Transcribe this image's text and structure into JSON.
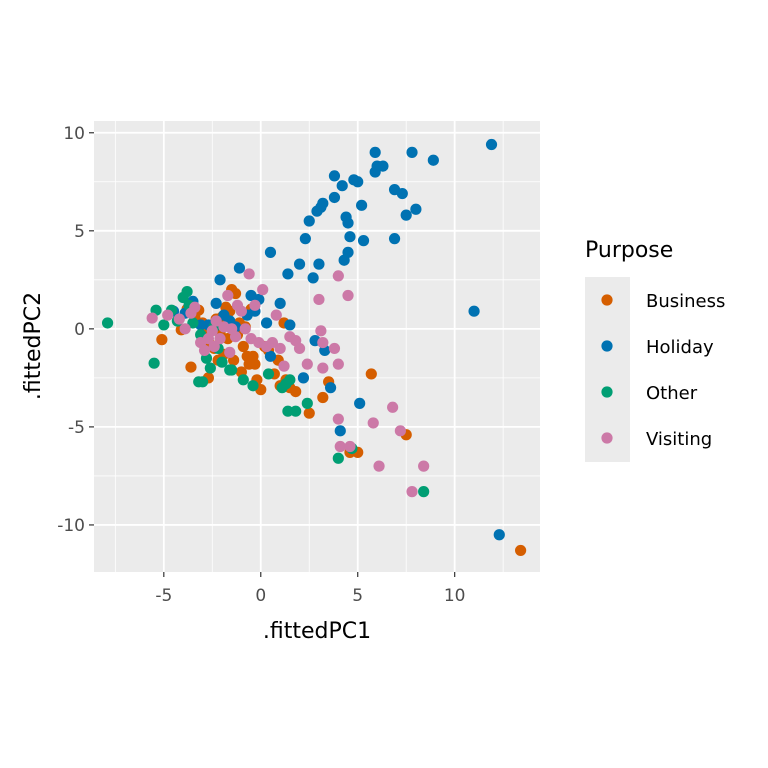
{
  "chart_data": {
    "type": "scatter",
    "title": "",
    "xlabel": ".fittedPC1",
    "ylabel": ".fittedPC2",
    "xlim": [
      -8.6,
      14.4
    ],
    "ylim": [
      -12.4,
      10.6
    ],
    "x_ticks": [
      -5,
      0,
      5,
      10
    ],
    "y_ticks": [
      -10,
      -5,
      0,
      5,
      10
    ],
    "x_tick_labels": [
      "-5",
      "0",
      "5",
      "10"
    ],
    "y_tick_labels": [
      "-10",
      "-5",
      "0",
      "5",
      "10"
    ],
    "grid": true,
    "legend": {
      "title": "Purpose",
      "position": "right"
    },
    "series": [
      {
        "name": "Business",
        "color": "#D55E00",
        "points": [
          [
            -5.1,
            -0.55
          ],
          [
            -4.1,
            -0.05
          ],
          [
            -3.8,
            1.0
          ],
          [
            -3.6,
            -1.95
          ],
          [
            -3.4,
            0.6
          ],
          [
            -3.2,
            0.95
          ],
          [
            -3.0,
            0.3
          ],
          [
            -2.8,
            -0.2
          ],
          [
            -2.6,
            -0.8
          ],
          [
            -2.5,
            0.2
          ],
          [
            -2.4,
            -1.0
          ],
          [
            -2.3,
            0.5
          ],
          [
            -2.2,
            -1.6
          ],
          [
            -2.1,
            -0.2
          ],
          [
            -2.0,
            0.6
          ],
          [
            -1.9,
            -1.3
          ],
          [
            -1.8,
            1.1
          ],
          [
            -1.7,
            -0.5
          ],
          [
            -1.6,
            0.9
          ],
          [
            -1.5,
            2.0
          ],
          [
            -1.4,
            -1.6
          ],
          [
            -1.3,
            1.8
          ],
          [
            -1.2,
            -0.3
          ],
          [
            -1.1,
            0.3
          ],
          [
            -1.0,
            -2.2
          ],
          [
            -0.9,
            -0.9
          ],
          [
            -0.8,
            0.1
          ],
          [
            -0.7,
            -1.4
          ],
          [
            -0.6,
            -1.8
          ],
          [
            -0.5,
            1.0
          ],
          [
            -0.4,
            -1.4
          ],
          [
            -0.3,
            -1.8
          ],
          [
            -0.2,
            -2.6
          ],
          [
            0.0,
            -3.1
          ],
          [
            0.2,
            -0.9
          ],
          [
            0.4,
            -1.1
          ],
          [
            0.7,
            -2.3
          ],
          [
            0.9,
            -1.6
          ],
          [
            1.0,
            -2.9
          ],
          [
            1.2,
            0.3
          ],
          [
            1.3,
            -2.6
          ],
          [
            1.5,
            -3.0
          ],
          [
            1.8,
            -3.2
          ],
          [
            2.5,
            -4.3
          ],
          [
            3.2,
            -3.5
          ],
          [
            3.5,
            -2.7
          ],
          [
            4.6,
            -6.3
          ],
          [
            5.0,
            -6.3
          ],
          [
            5.7,
            -2.3
          ],
          [
            7.5,
            -5.4
          ],
          [
            13.4,
            -11.3
          ],
          [
            -2.7,
            -2.5
          ]
        ]
      },
      {
        "name": "Holiday",
        "color": "#0072B2",
        "points": [
          [
            -4.5,
            0.9
          ],
          [
            -3.9,
            0.8
          ],
          [
            -3.5,
            1.4
          ],
          [
            -3.1,
            0.2
          ],
          [
            -2.7,
            0.2
          ],
          [
            -2.3,
            1.3
          ],
          [
            -2.1,
            2.5
          ],
          [
            -1.9,
            0.7
          ],
          [
            -1.6,
            0.4
          ],
          [
            -1.3,
            0.1
          ],
          [
            -1.1,
            3.1
          ],
          [
            -0.7,
            0.7
          ],
          [
            -0.5,
            1.7
          ],
          [
            -0.3,
            0.9
          ],
          [
            -0.1,
            1.5
          ],
          [
            0.3,
            0.3
          ],
          [
            0.5,
            3.9
          ],
          [
            0.5,
            -1.4
          ],
          [
            1.0,
            1.3
          ],
          [
            1.4,
            2.8
          ],
          [
            1.5,
            0.2
          ],
          [
            2.0,
            3.3
          ],
          [
            2.2,
            -2.5
          ],
          [
            2.3,
            4.6
          ],
          [
            2.5,
            5.5
          ],
          [
            2.7,
            2.6
          ],
          [
            2.8,
            -0.6
          ],
          [
            2.9,
            6.0
          ],
          [
            3.0,
            3.3
          ],
          [
            3.1,
            6.2
          ],
          [
            3.2,
            6.4
          ],
          [
            3.3,
            -1.1
          ],
          [
            3.6,
            -3.0
          ],
          [
            3.8,
            6.7
          ],
          [
            3.8,
            7.8
          ],
          [
            4.1,
            -5.2
          ],
          [
            4.2,
            7.3
          ],
          [
            4.3,
            3.5
          ],
          [
            4.4,
            5.7
          ],
          [
            4.5,
            3.9
          ],
          [
            4.5,
            5.4
          ],
          [
            4.6,
            4.7
          ],
          [
            4.8,
            7.6
          ],
          [
            5.0,
            7.5
          ],
          [
            5.1,
            -3.8
          ],
          [
            5.2,
            6.3
          ],
          [
            5.3,
            4.5
          ],
          [
            5.9,
            8.0
          ],
          [
            5.9,
            9.0
          ],
          [
            6.0,
            8.3
          ],
          [
            6.3,
            8.3
          ],
          [
            6.9,
            4.6
          ],
          [
            6.9,
            7.1
          ],
          [
            7.3,
            6.9
          ],
          [
            7.5,
            5.8
          ],
          [
            7.8,
            9.0
          ],
          [
            8.0,
            6.1
          ],
          [
            8.9,
            8.6
          ],
          [
            11.0,
            0.9
          ],
          [
            11.9,
            9.4
          ],
          [
            12.3,
            -10.5
          ]
        ]
      },
      {
        "name": "Other",
        "color": "#009E73",
        "points": [
          [
            -7.9,
            0.3
          ],
          [
            -5.5,
            -1.75
          ],
          [
            -5.4,
            0.95
          ],
          [
            -5.0,
            0.2
          ],
          [
            -4.6,
            0.95
          ],
          [
            -4.3,
            0.4
          ],
          [
            -4.0,
            1.6
          ],
          [
            -3.8,
            1.9
          ],
          [
            -3.7,
            1.2
          ],
          [
            -3.5,
            0.3
          ],
          [
            -3.2,
            -2.7
          ],
          [
            -3.0,
            -2.7
          ],
          [
            -2.8,
            -1.5
          ],
          [
            -2.6,
            -2.0
          ],
          [
            -2.4,
            0.1
          ],
          [
            -2.2,
            -1.0
          ],
          [
            -2.0,
            -1.7
          ],
          [
            -1.6,
            -2.1
          ],
          [
            -1.5,
            -2.1
          ],
          [
            -0.9,
            -2.6
          ],
          [
            -0.4,
            -2.9
          ],
          [
            0.4,
            -2.3
          ],
          [
            1.1,
            -3.0
          ],
          [
            1.3,
            -2.8
          ],
          [
            1.4,
            -4.2
          ],
          [
            1.5,
            -2.6
          ],
          [
            1.8,
            -4.2
          ],
          [
            2.4,
            -3.8
          ],
          [
            4.0,
            -6.6
          ],
          [
            4.7,
            -6.1
          ],
          [
            8.4,
            -8.3
          ],
          [
            -3.1,
            -0.3
          ]
        ]
      },
      {
        "name": "Visiting",
        "color": "#CC79A7",
        "points": [
          [
            -5.6,
            0.55
          ],
          [
            -4.8,
            0.7
          ],
          [
            -4.2,
            0.5
          ],
          [
            -3.9,
            0.0
          ],
          [
            -3.6,
            0.8
          ],
          [
            -3.4,
            1.1
          ],
          [
            -3.1,
            -0.7
          ],
          [
            -2.9,
            -1.1
          ],
          [
            -2.7,
            -0.5
          ],
          [
            -2.5,
            -0.1
          ],
          [
            -2.3,
            0.4
          ],
          [
            -2.1,
            -0.5
          ],
          [
            -1.9,
            0.1
          ],
          [
            -1.7,
            1.7
          ],
          [
            -1.6,
            -1.2
          ],
          [
            -1.5,
            0.0
          ],
          [
            -1.3,
            -0.4
          ],
          [
            -1.2,
            1.2
          ],
          [
            -1.0,
            0.9
          ],
          [
            -0.8,
            0.0
          ],
          [
            -0.6,
            2.8
          ],
          [
            -0.5,
            -0.5
          ],
          [
            -0.3,
            1.2
          ],
          [
            -0.1,
            -0.7
          ],
          [
            0.1,
            2.0
          ],
          [
            0.3,
            -0.9
          ],
          [
            0.6,
            -0.7
          ],
          [
            0.8,
            0.7
          ],
          [
            1.0,
            -1.0
          ],
          [
            1.2,
            -1.9
          ],
          [
            1.5,
            -0.4
          ],
          [
            1.8,
            -0.6
          ],
          [
            2.0,
            -1.0
          ],
          [
            2.4,
            -1.8
          ],
          [
            3.0,
            1.5
          ],
          [
            3.1,
            -0.1
          ],
          [
            3.2,
            -0.7
          ],
          [
            3.2,
            -2.0
          ],
          [
            3.8,
            -1.0
          ],
          [
            4.0,
            -1.8
          ],
          [
            4.0,
            2.7
          ],
          [
            4.0,
            -4.6
          ],
          [
            4.1,
            -6.0
          ],
          [
            4.5,
            1.7
          ],
          [
            5.8,
            -4.8
          ],
          [
            6.1,
            -7.0
          ],
          [
            7.2,
            -5.2
          ],
          [
            6.8,
            -4.0
          ],
          [
            7.8,
            -8.3
          ],
          [
            8.4,
            -7.0
          ],
          [
            4.6,
            -6.0
          ],
          [
            -2.4,
            -0.9
          ]
        ]
      }
    ]
  }
}
